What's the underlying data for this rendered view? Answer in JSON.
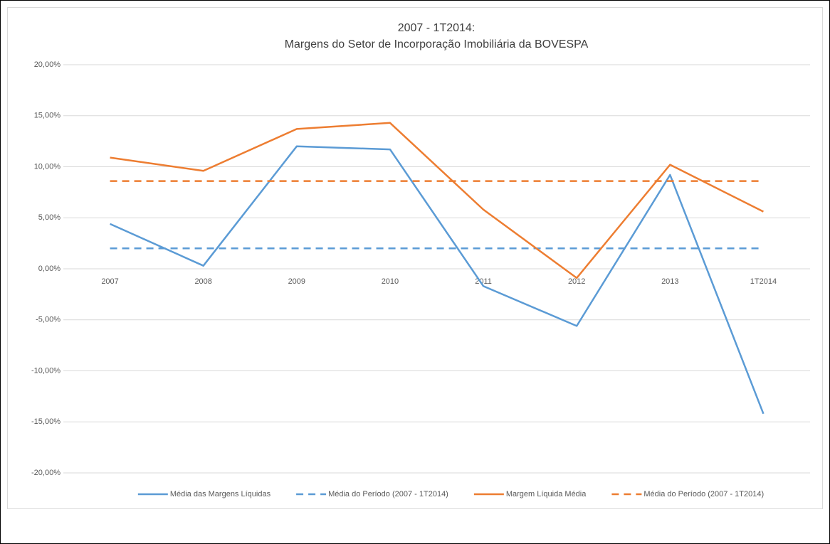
{
  "chart_data": {
    "type": "line",
    "title": "2007 - 1T2014:",
    "subtitle": "Margens do Setor de Incorporação Imobiliária da BOVESPA",
    "categories": [
      "2007",
      "2008",
      "2009",
      "2010",
      "2011",
      "2012",
      "2013",
      "1T2014"
    ],
    "series": [
      {
        "name": "Média das Margens Líquidas",
        "color": "#5b9bd5",
        "dashed": false,
        "values": [
          4.4,
          0.3,
          12.0,
          11.7,
          -1.7,
          -5.6,
          9.2,
          -14.2
        ]
      },
      {
        "name": "Média do Período (2007 - 1T2014)",
        "color": "#5b9bd5",
        "dashed": true,
        "values": [
          2.0,
          2.0,
          2.0,
          2.0,
          2.0,
          2.0,
          2.0,
          2.0
        ]
      },
      {
        "name": "Margem Líquida Média",
        "color": "#ed7d31",
        "dashed": false,
        "values": [
          10.9,
          9.6,
          13.7,
          14.3,
          5.8,
          -0.9,
          10.2,
          5.6
        ]
      },
      {
        "name": "Média do Período (2007 - 1T2014)",
        "color": "#ed7d31",
        "dashed": true,
        "values": [
          8.6,
          8.6,
          8.6,
          8.6,
          8.6,
          8.6,
          8.6,
          8.6
        ]
      }
    ],
    "ylim": [
      -20,
      20
    ],
    "yticks": [
      {
        "value": -20,
        "label": "-20,00%"
      },
      {
        "value": -15,
        "label": "-15,00%"
      },
      {
        "value": -10,
        "label": "-10,00%"
      },
      {
        "value": -5,
        "label": "-5,00%"
      },
      {
        "value": 0,
        "label": "0,00%"
      },
      {
        "value": 5,
        "label": "5,00%"
      },
      {
        "value": 10,
        "label": "10,00%"
      },
      {
        "value": 15,
        "label": "15,00%"
      },
      {
        "value": 20,
        "label": "20,00%"
      }
    ],
    "grid": true,
    "legend": "bottom"
  }
}
